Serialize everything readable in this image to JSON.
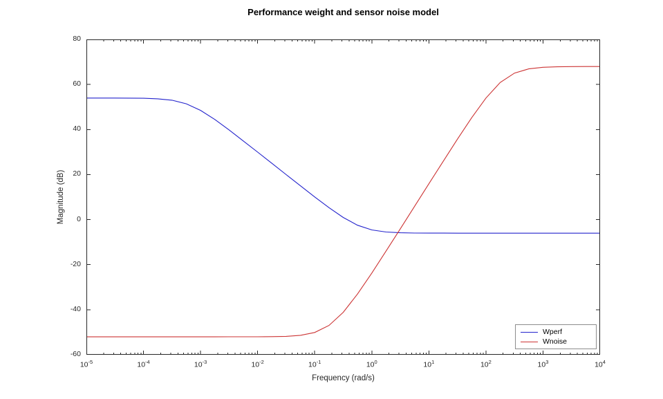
{
  "chart_data": {
    "type": "line",
    "title": "Performance weight and sensor noise model",
    "xlabel": "Frequency (rad/s)",
    "ylabel": "Magnitude (dB)",
    "xscale": "log",
    "xlim_log10": [
      -5,
      4
    ],
    "ylim": [
      -60,
      80
    ],
    "yticks": [
      -60,
      -40,
      -20,
      0,
      20,
      40,
      60,
      80
    ],
    "xtick_exponents": [
      -5,
      -4,
      -3,
      -2,
      -1,
      0,
      1,
      2,
      3,
      4
    ],
    "grid": false,
    "axis_color": "#262626",
    "background_color": "#ffffff",
    "legend": {
      "position": "southeast",
      "labels": [
        "Wperf",
        "Wnoise"
      ],
      "border_color": "#8c8c8c"
    },
    "x_log10": [
      -5,
      -4.75,
      -4.5,
      -4.25,
      -4,
      -3.75,
      -3.5,
      -3.25,
      -3,
      -2.75,
      -2.5,
      -2.25,
      -2,
      -1.75,
      -1.5,
      -1.25,
      -1,
      -0.75,
      -0.5,
      -0.25,
      0,
      0.25,
      0.5,
      0.75,
      1,
      1.25,
      1.5,
      1.75,
      2,
      2.25,
      2.5,
      2.75,
      3,
      3.25,
      3.5,
      3.75,
      4
    ],
    "series": [
      {
        "name": "Wperf",
        "color": "#2222cc",
        "description": "Performance weight: ~54 dB at low frequency, -20 dB/dec rolloff, flattens at -6 dB",
        "y_db": [
          53.97,
          53.97,
          53.96,
          53.94,
          53.87,
          53.64,
          53.0,
          51.43,
          48.51,
          44.45,
          39.8,
          34.91,
          29.95,
          24.97,
          19.98,
          15.0,
          10.07,
          5.3,
          0.94,
          -2.49,
          -4.57,
          -5.51,
          -5.85,
          -5.97,
          -6.0,
          -6.01,
          -6.02,
          -6.02,
          -6.02,
          -6.02,
          -6.02,
          -6.02,
          -6.02,
          -6.02,
          -6.02,
          -6.02,
          -6.02
        ]
      },
      {
        "name": "Wnoise",
        "color": "#cc3333",
        "description": "Sensor noise model: ~-52 dB at low frequency, +40 dB/dec rise, flattens at ~68 dB",
        "y_db": [
          -52.04,
          -52.04,
          -52.04,
          -52.04,
          -52.04,
          -52.04,
          -52.04,
          -52.04,
          -52.04,
          -52.04,
          -52.03,
          -52.03,
          -52.02,
          -51.97,
          -51.83,
          -51.38,
          -50.1,
          -46.98,
          -41.16,
          -33.05,
          -23.74,
          -13.97,
          -4.05,
          5.92,
          15.9,
          25.85,
          35.7,
          45.26,
          53.98,
          60.86,
          65.04,
          66.92,
          67.62,
          67.85,
          67.92,
          67.95,
          67.96
        ]
      }
    ]
  }
}
